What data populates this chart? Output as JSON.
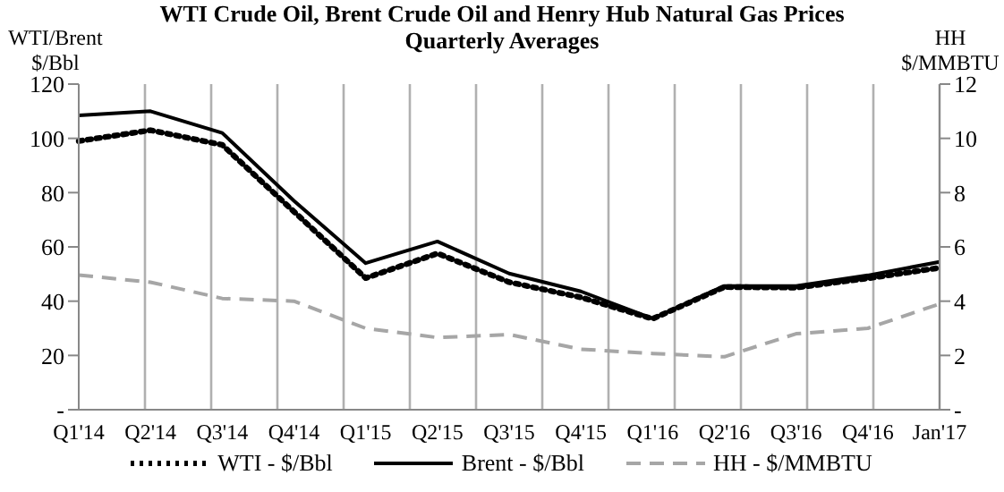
{
  "chart_data": {
    "type": "line",
    "title": "WTI Crude Oil, Brent Crude Oil and Henry Hub Natural Gas Prices",
    "subtitle": "Quarterly Averages",
    "ylabel": "WTI/Brent $/Bbl",
    "y2label": "HH $/MMBTU",
    "categories": [
      "Q1'14",
      "Q2'14",
      "Q3'14",
      "Q4'14",
      "Q1'15",
      "Q2'15",
      "Q3'15",
      "Q4'15",
      "Q1'16",
      "Q2'16",
      "Q3'16",
      "Q4'16",
      "Jan'17"
    ],
    "series": [
      {
        "name": "WTI - $/Bbl",
        "color": "#000000",
        "line_style": "dotted",
        "values": [
          99,
          103,
          97.6,
          73,
          48.5,
          57.6,
          47,
          41.4,
          33.5,
          45.2,
          45,
          48.4,
          52.3
        ]
      },
      {
        "name": "Brent - $/Bbl",
        "color": "#000000",
        "line_style": "solid",
        "values": [
          108.5,
          110,
          102,
          77,
          54,
          62,
          50.2,
          43.6,
          33.6,
          45.6,
          45.6,
          49.5,
          54.5
        ]
      },
      {
        "name": "HH - $/MMBTU",
        "color": "#a6a6a6",
        "line_style": "dashed",
        "axis": "y2",
        "values": [
          4.96,
          4.7,
          4.1,
          4.0,
          3.0,
          2.66,
          2.77,
          2.23,
          2.07,
          1.95,
          2.8,
          3.0,
          3.9
        ]
      }
    ],
    "ylim": [
      0,
      120
    ],
    "yticks": [
      {
        "value": 0,
        "label": "-"
      },
      20,
      40,
      60,
      80,
      100,
      120
    ],
    "y2lim": [
      0,
      12
    ],
    "y2ticks": [
      {
        "value": 0,
        "label": "-"
      },
      2,
      4,
      6,
      8,
      10,
      12
    ],
    "grid": "x",
    "legend": "bottom",
    "marker": "none"
  }
}
